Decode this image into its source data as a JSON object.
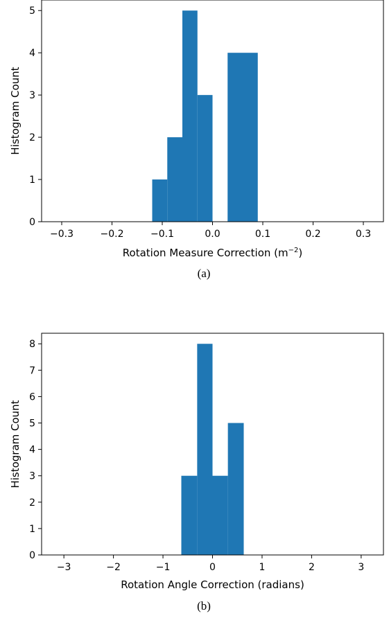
{
  "chart_data": [
    {
      "type": "bar",
      "caption": "(a)",
      "xlabel": "Rotation Measure Correction (m",
      "xlabel_superscript": "−2",
      "xlabel_suffix": ")",
      "ylabel": "Histogram Count",
      "xlim": [
        -0.34,
        0.34
      ],
      "ylim": [
        0,
        5.25
      ],
      "xticks": [
        -0.3,
        -0.2,
        -0.1,
        0.0,
        0.1,
        0.2,
        0.3
      ],
      "xtick_labels": [
        "−0.3",
        "−0.2",
        "−0.1",
        "0.0",
        "0.1",
        "0.2",
        "0.3"
      ],
      "yticks": [
        0,
        1,
        2,
        3,
        4,
        5
      ],
      "ytick_labels": [
        "0",
        "1",
        "2",
        "3",
        "4",
        "5"
      ],
      "bar_color": "#1f77b4",
      "bins": [
        {
          "start": -0.12,
          "end": -0.09,
          "count": 1
        },
        {
          "start": -0.09,
          "end": -0.06,
          "count": 2
        },
        {
          "start": -0.06,
          "end": -0.03,
          "count": 5
        },
        {
          "start": -0.03,
          "end": 0.0,
          "count": 3
        },
        {
          "start": 0.0,
          "end": 0.03,
          "count": 0
        },
        {
          "start": 0.03,
          "end": 0.06,
          "count": 4
        },
        {
          "start": 0.06,
          "end": 0.09,
          "count": 4
        }
      ]
    },
    {
      "type": "bar",
      "caption": "(b)",
      "xlabel": "Rotation Angle Correction (radians)",
      "ylabel": "Histogram Count",
      "xlim": [
        -3.45,
        3.45
      ],
      "ylim": [
        0,
        8.4
      ],
      "xticks": [
        -3,
        -2,
        -1,
        0,
        1,
        2,
        3
      ],
      "xtick_labels": [
        "−3",
        "−2",
        "−1",
        "0",
        "1",
        "2",
        "3"
      ],
      "yticks": [
        0,
        1,
        2,
        3,
        4,
        5,
        6,
        7,
        8
      ],
      "ytick_labels": [
        "0",
        "1",
        "2",
        "3",
        "4",
        "5",
        "6",
        "7",
        "8"
      ],
      "bar_color": "#1f77b4",
      "bins": [
        {
          "start": -0.63,
          "end": -0.31,
          "count": 3
        },
        {
          "start": -0.31,
          "end": 0.0,
          "count": 8
        },
        {
          "start": 0.0,
          "end": 0.31,
          "count": 3
        },
        {
          "start": 0.31,
          "end": 0.63,
          "count": 5
        }
      ]
    }
  ]
}
